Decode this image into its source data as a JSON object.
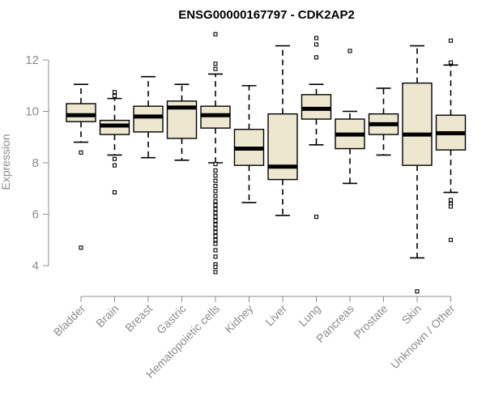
{
  "chart_data": {
    "type": "boxplot",
    "title": "ENSG00000167797 - CDK2AP2",
    "ylabel": "Expression",
    "xlabel": "",
    "ylim": [
      3.4,
      13.3
    ],
    "yticks": [
      4,
      6,
      8,
      10,
      12
    ],
    "grid": false,
    "legend": "none",
    "colors": {
      "box_fill": "#ede7cf",
      "box_stroke": "#000000",
      "median": "#000000",
      "axis": "#8c8c8c",
      "tick_text": "#8c8c8c"
    },
    "categories": [
      "Bladder",
      "Brain",
      "Breast",
      "Gastric",
      "Hematopoietic cells",
      "Kidney",
      "Liver",
      "Lung",
      "Pancreas",
      "Prostate",
      "Skin",
      "Unknown / Other"
    ],
    "boxes": [
      {
        "q1": 9.6,
        "median": 9.85,
        "q3": 10.3,
        "whisker_low": 8.8,
        "whisker_high": 11.05,
        "outliers": [
          8.4,
          4.7
        ]
      },
      {
        "q1": 9.1,
        "median": 9.45,
        "q3": 9.65,
        "whisker_low": 8.3,
        "whisker_high": 10.5,
        "outliers": [
          10.75,
          10.6,
          8.15,
          7.9,
          6.85
        ]
      },
      {
        "q1": 9.2,
        "median": 9.8,
        "q3": 10.2,
        "whisker_low": 8.2,
        "whisker_high": 11.35,
        "outliers": []
      },
      {
        "q1": 8.95,
        "median": 10.15,
        "q3": 10.4,
        "whisker_low": 8.1,
        "whisker_high": 11.05,
        "outliers": []
      },
      {
        "q1": 9.35,
        "median": 9.85,
        "q3": 10.2,
        "whisker_low": 8.0,
        "whisker_high": 11.45,
        "outliers": [
          13.0,
          11.85,
          11.65,
          7.95,
          7.7,
          7.5,
          7.3,
          7.1,
          6.9,
          6.7,
          6.5,
          6.35,
          6.2,
          6.05,
          5.9,
          5.75,
          5.6,
          5.45,
          5.3,
          5.15,
          5.0,
          4.85,
          4.6,
          4.35,
          4.05,
          3.95,
          3.75
        ]
      },
      {
        "q1": 7.9,
        "median": 8.55,
        "q3": 9.3,
        "whisker_low": 6.45,
        "whisker_high": 11.0,
        "outliers": []
      },
      {
        "q1": 7.35,
        "median": 7.85,
        "q3": 9.9,
        "whisker_low": 5.95,
        "whisker_high": 12.55,
        "outliers": []
      },
      {
        "q1": 9.7,
        "median": 10.1,
        "q3": 10.65,
        "whisker_low": 8.7,
        "whisker_high": 11.05,
        "outliers": [
          12.85,
          12.6,
          12.1,
          5.9
        ]
      },
      {
        "q1": 8.55,
        "median": 9.1,
        "q3": 9.7,
        "whisker_low": 7.2,
        "whisker_high": 10.0,
        "outliers": [
          12.35
        ]
      },
      {
        "q1": 9.1,
        "median": 9.5,
        "q3": 9.9,
        "whisker_low": 8.3,
        "whisker_high": 10.9,
        "outliers": []
      },
      {
        "q1": 7.9,
        "median": 9.1,
        "q3": 11.1,
        "whisker_low": 4.3,
        "whisker_high": 12.55,
        "outliers": [
          3.0
        ]
      },
      {
        "q1": 8.5,
        "median": 9.15,
        "q3": 9.85,
        "whisker_low": 6.85,
        "whisker_high": 11.8,
        "outliers": [
          12.75,
          11.9,
          6.55,
          6.4,
          6.3,
          5.0
        ]
      }
    ]
  }
}
